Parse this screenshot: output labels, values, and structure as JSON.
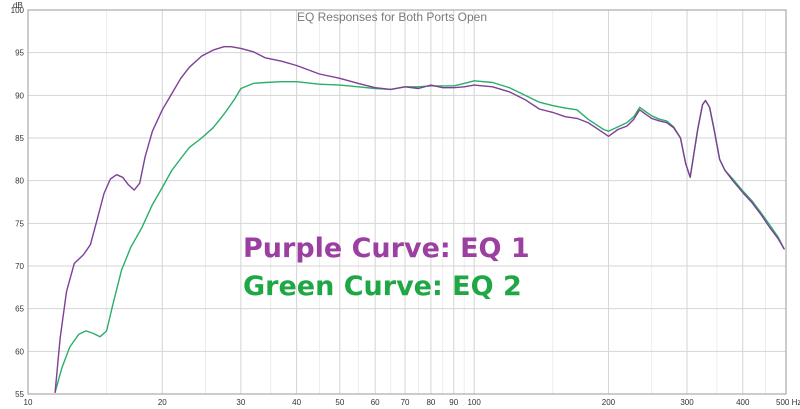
{
  "chart_data": {
    "type": "line",
    "title": "EQ Responses for Both Ports Open",
    "xlabel": "",
    "ylabel": "",
    "x_scale": "log",
    "xlim": [
      10,
      500
    ],
    "ylim": [
      55,
      100
    ],
    "y_unit": "dB",
    "x_unit": "Hz",
    "grid": true,
    "x_ticks": [
      10,
      20,
      30,
      40,
      50,
      60,
      70,
      80,
      90,
      100,
      200,
      300,
      400,
      500
    ],
    "x_tick_labels": [
      "10",
      "20",
      "30",
      "40",
      "50",
      "60",
      "70",
      "80",
      "90",
      "100",
      "200",
      "300",
      "400",
      "500 Hz"
    ],
    "y_ticks": [
      55,
      60,
      65,
      70,
      75,
      80,
      85,
      90,
      95,
      100
    ],
    "annotations": [
      {
        "text": "Purple Curve: EQ 1",
        "color": "#9b3fa0"
      },
      {
        "text": "Green Curve: EQ 2",
        "color": "#1fa745"
      }
    ],
    "series": [
      {
        "color": "#7f3f98",
        "points": [
          [
            11.5,
            55.2
          ],
          [
            11.8,
            61.5
          ],
          [
            12.2,
            67
          ],
          [
            12.7,
            70.3
          ],
          [
            13.3,
            71.3
          ],
          [
            13.8,
            72.5
          ],
          [
            14.3,
            75.5
          ],
          [
            14.8,
            78.5
          ],
          [
            15.3,
            80.2
          ],
          [
            15.8,
            80.7
          ],
          [
            16.3,
            80.4
          ],
          [
            16.8,
            79.5
          ],
          [
            17.3,
            78.9
          ],
          [
            17.8,
            79.7
          ],
          [
            18.3,
            82.8
          ],
          [
            19,
            85.8
          ],
          [
            20,
            88.3
          ],
          [
            21,
            90.2
          ],
          [
            22,
            92
          ],
          [
            23,
            93.3
          ],
          [
            24.5,
            94.6
          ],
          [
            26,
            95.3
          ],
          [
            27.5,
            95.7
          ],
          [
            28.5,
            95.7
          ],
          [
            30,
            95.5
          ],
          [
            32,
            95.1
          ],
          [
            34,
            94.4
          ],
          [
            37,
            94
          ],
          [
            40,
            93.5
          ],
          [
            45,
            92.5
          ],
          [
            50,
            92
          ],
          [
            55,
            91.4
          ],
          [
            60,
            90.9
          ],
          [
            65,
            90.7
          ],
          [
            70,
            91
          ],
          [
            75,
            90.8
          ],
          [
            80,
            91.2
          ],
          [
            85,
            90.9
          ],
          [
            90,
            90.9
          ],
          [
            95,
            91
          ],
          [
            100,
            91.2
          ],
          [
            110,
            91
          ],
          [
            120,
            90.4
          ],
          [
            130,
            89.5
          ],
          [
            140,
            88.4
          ],
          [
            150,
            88
          ],
          [
            160,
            87.5
          ],
          [
            170,
            87.3
          ],
          [
            180,
            86.8
          ],
          [
            195,
            85.6
          ],
          [
            200,
            85.2
          ],
          [
            210,
            86
          ],
          [
            220,
            86.4
          ],
          [
            228,
            87.2
          ],
          [
            235,
            88.3
          ],
          [
            242,
            87.8
          ],
          [
            250,
            87.3
          ],
          [
            260,
            87
          ],
          [
            270,
            86.8
          ],
          [
            280,
            86.2
          ],
          [
            290,
            85
          ],
          [
            298,
            82
          ],
          [
            305,
            80.4
          ],
          [
            310,
            82.8
          ],
          [
            317,
            86
          ],
          [
            325,
            88.9
          ],
          [
            330,
            89.4
          ],
          [
            337,
            88.6
          ],
          [
            345,
            86
          ],
          [
            355,
            82.5
          ],
          [
            365,
            81.2
          ],
          [
            380,
            80
          ],
          [
            400,
            78.6
          ],
          [
            420,
            77.4
          ],
          [
            440,
            76
          ],
          [
            460,
            74.5
          ],
          [
            480,
            73.2
          ],
          [
            495,
            72
          ]
        ]
      },
      {
        "color": "#2aae68",
        "points": [
          [
            11.5,
            55.2
          ],
          [
            11.9,
            58
          ],
          [
            12.4,
            60.5
          ],
          [
            13,
            62
          ],
          [
            13.5,
            62.4
          ],
          [
            14,
            62.1
          ],
          [
            14.5,
            61.7
          ],
          [
            15,
            62.4
          ],
          [
            15.5,
            65.5
          ],
          [
            16.2,
            69.5
          ],
          [
            17,
            72.2
          ],
          [
            18,
            74.5
          ],
          [
            19,
            77.2
          ],
          [
            20,
            79.2
          ],
          [
            21,
            81.2
          ],
          [
            22,
            82.6
          ],
          [
            23,
            83.9
          ],
          [
            24.5,
            85
          ],
          [
            26,
            86.2
          ],
          [
            27.5,
            87.8
          ],
          [
            29,
            89.5
          ],
          [
            30,
            90.8
          ],
          [
            32,
            91.4
          ],
          [
            34,
            91.5
          ],
          [
            37,
            91.6
          ],
          [
            40,
            91.6
          ],
          [
            45,
            91.3
          ],
          [
            50,
            91.2
          ],
          [
            55,
            91
          ],
          [
            60,
            90.8
          ],
          [
            65,
            90.7
          ],
          [
            70,
            91
          ],
          [
            75,
            91
          ],
          [
            80,
            91.1
          ],
          [
            85,
            91.1
          ],
          [
            90,
            91.1
          ],
          [
            95,
            91.4
          ],
          [
            100,
            91.7
          ],
          [
            110,
            91.5
          ],
          [
            120,
            90.9
          ],
          [
            130,
            90
          ],
          [
            140,
            89.2
          ],
          [
            150,
            88.8
          ],
          [
            160,
            88.5
          ],
          [
            170,
            88.3
          ],
          [
            180,
            87.2
          ],
          [
            195,
            86
          ],
          [
            200,
            85.8
          ],
          [
            210,
            86.3
          ],
          [
            220,
            86.8
          ],
          [
            228,
            87.5
          ],
          [
            235,
            88.6
          ],
          [
            242,
            88.1
          ],
          [
            250,
            87.6
          ],
          [
            260,
            87.2
          ],
          [
            270,
            87
          ],
          [
            280,
            86.3
          ],
          [
            290,
            85
          ],
          [
            298,
            82
          ],
          [
            305,
            80.4
          ],
          [
            310,
            82.8
          ],
          [
            317,
            86
          ],
          [
            325,
            88.9
          ],
          [
            330,
            89.4
          ],
          [
            337,
            88.6
          ],
          [
            345,
            86
          ],
          [
            355,
            82.5
          ],
          [
            365,
            81.2
          ],
          [
            380,
            80.2
          ],
          [
            400,
            78.8
          ],
          [
            420,
            77.6
          ],
          [
            440,
            76.2
          ],
          [
            460,
            74.8
          ],
          [
            480,
            73.4
          ],
          [
            495,
            72
          ]
        ]
      }
    ]
  }
}
